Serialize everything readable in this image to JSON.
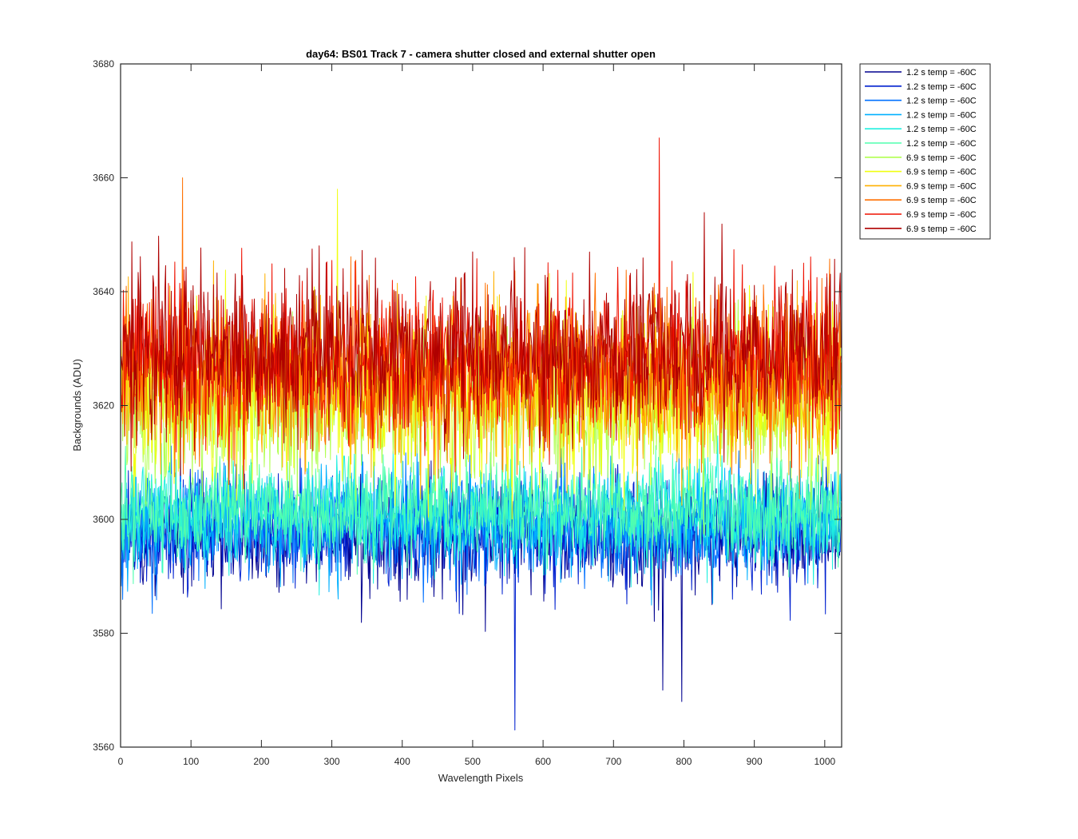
{
  "chart_data": {
    "type": "line",
    "title": "day64: BS01  Track 7 - camera shutter closed and external shutter open",
    "xlabel": "Wavelength Pixels",
    "ylabel": "Backgrounds (ADU)",
    "xlim": [
      0,
      1024
    ],
    "ylim": [
      3560,
      3680
    ],
    "xticks": [
      "0",
      "100",
      "200",
      "300",
      "400",
      "500",
      "600",
      "700",
      "800",
      "900",
      "1000"
    ],
    "yticks": [
      "3560",
      "3580",
      "3600",
      "3620",
      "3640",
      "3660",
      "3680"
    ],
    "grid": false,
    "legend_position": "outside-top-right",
    "series": [
      {
        "name": "1.2 s temp = -60C",
        "color": "#00008f",
        "mean": 3597,
        "noise": 4.5
      },
      {
        "name": "1.2 s temp = -60C",
        "color": "#0020cf",
        "mean": 3598,
        "noise": 4.5
      },
      {
        "name": "1.2 s temp = -60C",
        "color": "#0070ff",
        "mean": 3599,
        "noise": 4.5
      },
      {
        "name": "1.2 s temp = -60C",
        "color": "#00b0ff",
        "mean": 3600,
        "noise": 4.5
      },
      {
        "name": "1.2 s temp = -60C",
        "color": "#20efdf",
        "mean": 3601,
        "noise": 4.5
      },
      {
        "name": "1.2 s temp = -60C",
        "color": "#50ffaf",
        "mean": 3602,
        "noise": 4.5
      },
      {
        "name": "6.9 s temp = -60C",
        "color": "#b0ff50",
        "mean": 3620,
        "noise": 7
      },
      {
        "name": "6.9 s temp = -60C",
        "color": "#f0ff10",
        "mean": 3622,
        "noise": 7
      },
      {
        "name": "6.9 s temp = -60C",
        "color": "#ffb000",
        "mean": 3624,
        "noise": 7
      },
      {
        "name": "6.9 s temp = -60C",
        "color": "#ff7000",
        "mean": 3626,
        "noise": 7
      },
      {
        "name": "6.9 s temp = -60C",
        "color": "#ef1000",
        "mean": 3628,
        "noise": 7
      },
      {
        "name": "6.9 s temp = -60C",
        "color": "#af0000",
        "mean": 3630,
        "noise": 7
      }
    ],
    "notable_points": [
      {
        "series": 1,
        "x": 560,
        "y": 3563
      },
      {
        "series": 10,
        "x": 765,
        "y": 3667
      },
      {
        "series": 9,
        "x": 88,
        "y": 3660
      },
      {
        "series": 7,
        "x": 308,
        "y": 3658
      },
      {
        "series": 0,
        "x": 797,
        "y": 3568
      },
      {
        "series": 0,
        "x": 770,
        "y": 3570
      }
    ]
  }
}
